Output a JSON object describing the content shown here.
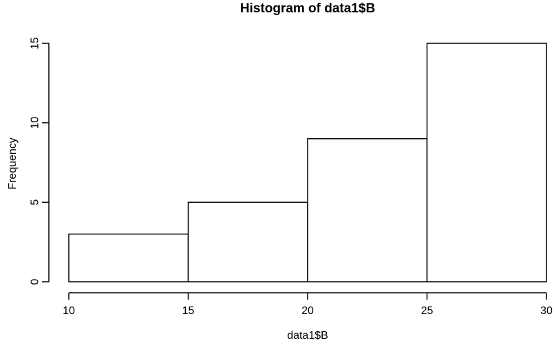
{
  "chart_data": {
    "type": "bar",
    "subtype": "histogram",
    "title": "Histogram of data1$B",
    "xlabel": "data1$B",
    "ylabel": "Frequency",
    "breaks": [
      10,
      15,
      20,
      25,
      30
    ],
    "counts": [
      3,
      5,
      9,
      15
    ],
    "x_ticks": [
      10,
      15,
      20,
      25,
      30
    ],
    "y_ticks": [
      0,
      5,
      10,
      15
    ],
    "xlim": [
      10,
      30
    ],
    "ylim": [
      0,
      15
    ],
    "grid": false,
    "legend": "none",
    "colors": {
      "background": "#ffffff",
      "bar_fill": "#ffffff",
      "bar_border": "#000000",
      "axis": "#000000",
      "text": "#000000"
    }
  }
}
